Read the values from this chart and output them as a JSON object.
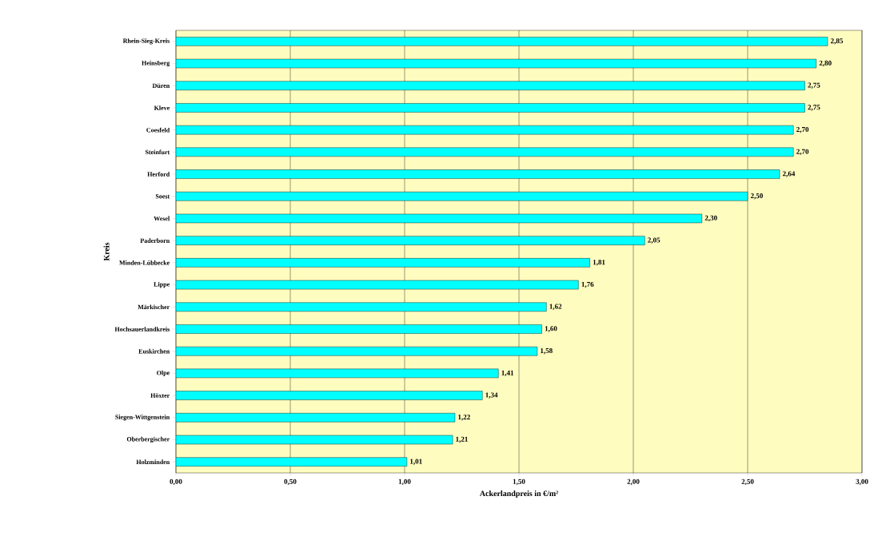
{
  "chart_data": {
    "type": "bar",
    "orientation": "horizontal",
    "xlabel": "Ackerlandpreis in €/m²",
    "ylabel": "Kreis",
    "categories": [
      "Rhein-Sieg-Kreis",
      "Heinsberg",
      "Düren",
      "Kleve",
      "Coesfeld",
      "Steinfurt",
      "Herford",
      "Soest",
      "Wesel",
      "Paderborn",
      "Minden-Lübbecke",
      "Lippe",
      "Märkischer",
      "Hochsauerlandkreis",
      "Euskirchen",
      "Olpe",
      "Höxter",
      "Siegen-Wittgenstein",
      "Oberbergischer",
      "Holzminden"
    ],
    "values": [
      2.85,
      2.8,
      2.75,
      2.75,
      2.7,
      2.7,
      2.64,
      2.5,
      2.3,
      2.05,
      1.81,
      1.76,
      1.62,
      1.6,
      1.58,
      1.41,
      1.34,
      1.22,
      1.21,
      1.01
    ],
    "value_labels": [
      "2,85",
      "2,80",
      "2,75",
      "2,75",
      "2,70",
      "2,70",
      "2,64",
      "2,50",
      "2,30",
      "2,05",
      "1,81",
      "1,76",
      "1,62",
      "1,60",
      "1,58",
      "1,41",
      "1,34",
      "1,22",
      "1,21",
      "1,01"
    ],
    "color": "#00ffff",
    "xlim": [
      0,
      3
    ],
    "xticks": [
      {
        "value": 0,
        "label": "0,00"
      },
      {
        "value": 0.5,
        "label": "0,50"
      },
      {
        "value": 1,
        "label": "1,00"
      },
      {
        "value": 1.5,
        "label": "1,50"
      },
      {
        "value": 2,
        "label": "2,00"
      },
      {
        "value": 2.5,
        "label": "2,50"
      },
      {
        "value": 3,
        "label": "3,00"
      }
    ],
    "grid": "x"
  }
}
